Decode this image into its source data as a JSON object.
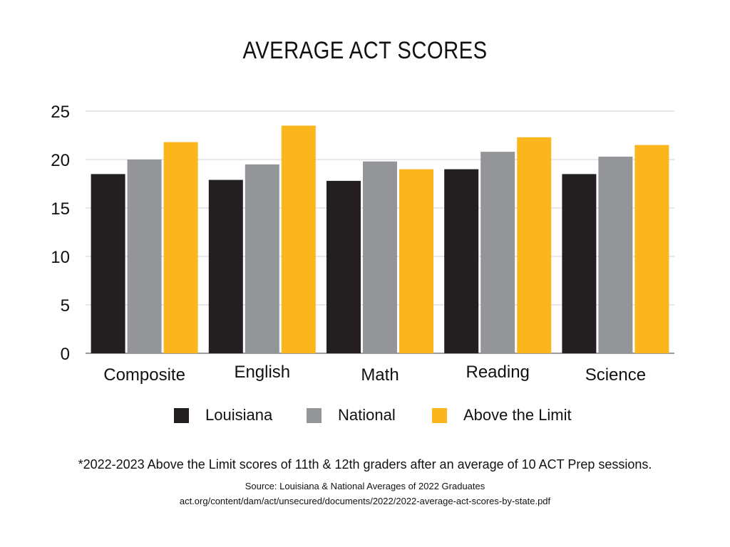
{
  "chart_data": {
    "type": "bar",
    "title": "AVERAGE ACT SCORES",
    "categories": [
      "Composite",
      "English",
      "Math",
      "Reading",
      "Science"
    ],
    "series": [
      {
        "name": "Louisiana",
        "color": "#231f20",
        "values": [
          18.5,
          17.9,
          17.8,
          19.0,
          18.5
        ]
      },
      {
        "name": "National",
        "color": "#939598",
        "values": [
          20.0,
          19.5,
          19.8,
          20.8,
          20.3
        ]
      },
      {
        "name": "Above the Limit",
        "color": "#fbb51d",
        "values": [
          21.8,
          23.5,
          19.0,
          22.3,
          21.5
        ]
      }
    ],
    "yticks": [
      "0",
      "5",
      "10",
      "15",
      "20",
      "25"
    ],
    "ylim": [
      0,
      25
    ],
    "grid": true,
    "legend_position": "bottom"
  },
  "footnote": "*2022-2023 Above the Limit scores of 11th & 12th graders after an average of 10 ACT Prep sessions.",
  "source": "Source: Louisiana & National Averages of 2022 Graduates",
  "source_url": "act.org/content/dam/act/unsecured/documents/2022/2022-average-act-scores-by-state.pdf"
}
